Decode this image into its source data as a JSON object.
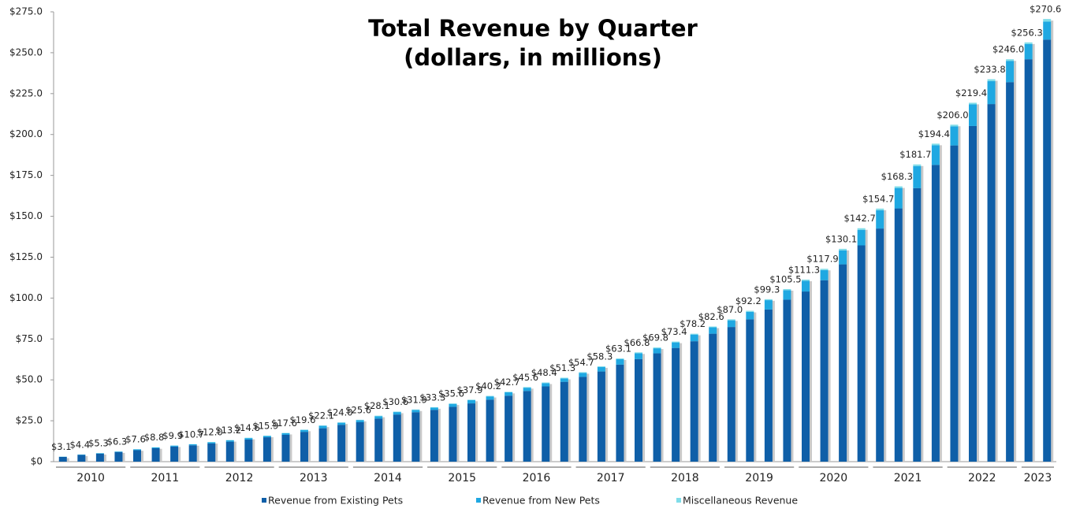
{
  "chart_data": {
    "type": "stacked_bar",
    "title": "Total Revenue by Quarter",
    "subtitle": "(dollars, in millions)",
    "categories": [
      "2010",
      "2010",
      "2010",
      "2010",
      "2011",
      "2011",
      "2011",
      "2011",
      "2012",
      "2012",
      "2012",
      "2012",
      "2013",
      "2013",
      "2013",
      "2013",
      "2014",
      "2014",
      "2014",
      "2014",
      "2015",
      "2015",
      "2015",
      "2015",
      "2016",
      "2016",
      "2016",
      "2016",
      "2017",
      "2017",
      "2017",
      "2017",
      "2018",
      "2018",
      "2018",
      "2018",
      "2019",
      "2019",
      "2019",
      "2019",
      "2020",
      "2020",
      "2020",
      "2020",
      "2021",
      "2021",
      "2021",
      "2021",
      "2022",
      "2022",
      "2022",
      "2022",
      "2023",
      "2023"
    ],
    "series": [
      {
        "name": "Revenue from Existing Pets",
        "color": "#0f5fa8",
        "values": [
          2.9,
          4.1,
          4.9,
          5.9,
          7.0,
          8.2,
          9.2,
          10.0,
          11.1,
          12.2,
          13.5,
          14.9,
          16.4,
          18.2,
          20.4,
          22.5,
          24.1,
          26.3,
          28.8,
          30.2,
          31.6,
          33.5,
          35.6,
          37.9,
          40.3,
          43.2,
          46.0,
          48.8,
          51.8,
          55.1,
          59.3,
          62.7,
          66.2,
          69.5,
          73.6,
          78.2,
          82.3,
          87.0,
          93.0,
          99.0,
          104.0,
          110.9,
          120.6,
          132.2,
          142.5,
          154.8,
          167.2,
          181.4,
          193.3,
          205.2,
          218.6,
          232.0,
          246.0,
          258.0
        ]
      },
      {
        "name": "Revenue from New Pets",
        "color": "#1fa8e2",
        "values": [
          0.1,
          0.2,
          0.3,
          0.3,
          0.5,
          0.5,
          0.6,
          0.6,
          0.7,
          0.8,
          0.9,
          0.8,
          1.0,
          1.2,
          1.5,
          1.3,
          1.3,
          1.5,
          1.5,
          1.4,
          1.4,
          1.8,
          2.0,
          2.0,
          2.1,
          2.0,
          2.0,
          2.1,
          2.5,
          2.8,
          3.3,
          3.6,
          3.1,
          3.4,
          4.1,
          3.9,
          4.1,
          4.6,
          5.7,
          5.8,
          6.6,
          6.2,
          8.6,
          9.5,
          11.2,
          12.5,
          13.5,
          12.0,
          11.7,
          13.2,
          14.0,
          13.0,
          9.3,
          11.0
        ]
      },
      {
        "name": "Miscellaneous Revenue",
        "color": "#7fdde9",
        "values": [
          0.1,
          0.1,
          0.1,
          0.1,
          0.1,
          0.1,
          0.1,
          0.1,
          0.2,
          0.2,
          0.2,
          0.2,
          0.2,
          0.2,
          0.2,
          0.2,
          0.2,
          0.3,
          0.3,
          0.3,
          0.3,
          0.3,
          0.3,
          0.3,
          0.3,
          0.4,
          0.4,
          0.4,
          0.4,
          0.4,
          0.5,
          0.5,
          0.5,
          0.5,
          0.5,
          0.5,
          0.6,
          0.6,
          0.6,
          0.7,
          0.7,
          0.8,
          0.9,
          1.0,
          1.0,
          1.0,
          1.0,
          1.0,
          1.0,
          1.0,
          1.2,
          1.0,
          1.0,
          1.6
        ]
      }
    ],
    "totals": {
      "values": [
        3.1,
        4.4,
        5.3,
        6.3,
        7.6,
        8.8,
        9.9,
        10.7,
        12.0,
        13.2,
        14.6,
        15.9,
        17.6,
        19.6,
        22.1,
        24.0,
        25.6,
        28.1,
        30.6,
        31.9,
        33.3,
        35.6,
        37.9,
        40.2,
        42.7,
        45.6,
        48.4,
        51.3,
        54.7,
        58.3,
        63.1,
        66.8,
        69.8,
        73.4,
        78.2,
        82.6,
        87.0,
        92.2,
        99.3,
        105.5,
        111.3,
        117.9,
        130.1,
        142.7,
        154.7,
        168.3,
        181.7,
        194.4,
        206.0,
        219.4,
        233.8,
        246.0,
        256.3,
        270.6
      ],
      "value_labels": [
        "$3.1",
        "$4.4",
        "$5.3",
        "$6.3",
        "$7.6",
        "$8.8",
        "$9.9",
        "$10.7",
        "$12.0",
        "$13.2",
        "$14.6",
        "$15.9",
        "$17.6",
        "$19.6",
        "$22.1",
        "$24.0",
        "$25.6",
        "$28.1",
        "$30.6",
        "$31.9",
        "$33.3",
        "$35.6",
        "$37.9",
        "$40.2",
        "$42.7",
        "$45.6",
        "$48.4",
        "$51.3",
        "$54.7",
        "$58.3",
        "$63.1",
        "$66.8",
        "$69.8",
        "$73.4",
        "$78.2",
        "$82.6",
        "$87.0",
        "$92.2",
        "$99.3",
        "$105.5",
        "$111.3",
        "$117.9",
        "$130.1",
        "$142.7",
        "$154.7",
        "$168.3",
        "$181.7",
        "$194.4",
        "$206.0",
        "$219.4",
        "$233.8",
        "$246.0",
        "$256.3",
        "$270.6"
      ]
    },
    "ylim": [
      0,
      275
    ],
    "yticks": [
      {
        "value": 0,
        "label": "$0"
      },
      {
        "value": 25,
        "label": "$25.0"
      },
      {
        "value": 50,
        "label": "$50.0"
      },
      {
        "value": 75,
        "label": "$75.0"
      },
      {
        "value": 100,
        "label": "$100.0"
      },
      {
        "value": 125,
        "label": "$125.0"
      },
      {
        "value": 150,
        "label": "$150.0"
      },
      {
        "value": 175,
        "label": "$175.0"
      },
      {
        "value": 200,
        "label": "$200.0"
      },
      {
        "value": 225,
        "label": "$225.0"
      },
      {
        "value": 250,
        "label": "$250.0"
      },
      {
        "value": 275,
        "label": "$275.0"
      }
    ],
    "grid": false,
    "legend": "bottom"
  }
}
